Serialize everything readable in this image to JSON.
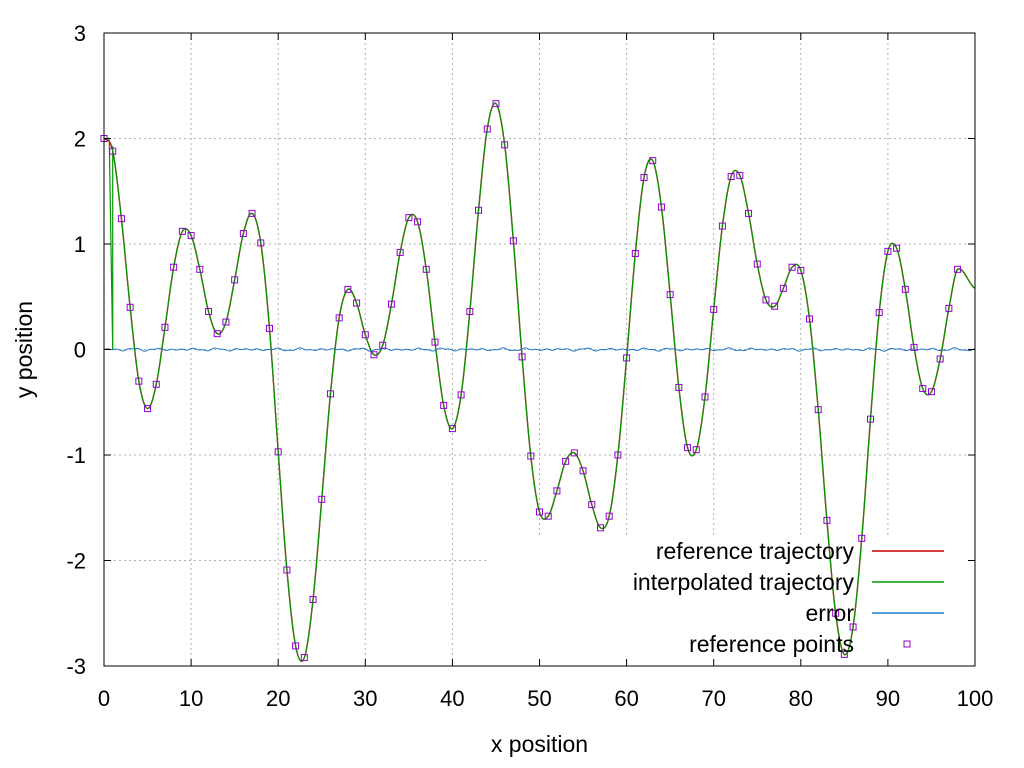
{
  "chart_data": {
    "type": "line",
    "title": "",
    "xlabel": "x position",
    "ylabel": "y position",
    "xlim": [
      0,
      100
    ],
    "ylim": [
      -3,
      3
    ],
    "xticks": [
      0,
      10,
      20,
      30,
      40,
      50,
      60,
      70,
      80,
      90,
      100
    ],
    "yticks": [
      -3,
      -2,
      -1,
      0,
      1,
      2,
      3
    ],
    "grid": true,
    "legend_position": "bottom-right",
    "series": [
      {
        "name": "reference trajectory",
        "style": "line",
        "color": "#cc0000"
      },
      {
        "name": "interpolated trajectory",
        "style": "line",
        "color": "#009900"
      },
      {
        "name": "error",
        "style": "line",
        "color": "#1f78c8"
      },
      {
        "name": "reference points",
        "style": "markers",
        "color": "#9400d3"
      }
    ],
    "reference_points": {
      "x": [
        0,
        1,
        2,
        3,
        4,
        5,
        6,
        7,
        8,
        9,
        10,
        11,
        12,
        13,
        14,
        15,
        16,
        17,
        18,
        19,
        20,
        21,
        22,
        23,
        24,
        25,
        26,
        27,
        28,
        29,
        30,
        31,
        32,
        33,
        34,
        35,
        36,
        37,
        38,
        39,
        40,
        41,
        42,
        43,
        44,
        45,
        46,
        47,
        48,
        49,
        50,
        51,
        52,
        53,
        54,
        55,
        56,
        57,
        58,
        59,
        60,
        61,
        62,
        63,
        64,
        65,
        66,
        67,
        68,
        69,
        70,
        71,
        72,
        73,
        74,
        75,
        76,
        77,
        78,
        79,
        80,
        81,
        82,
        83,
        84,
        85,
        86,
        87,
        88,
        89,
        90,
        91,
        92,
        93,
        94,
        95,
        96,
        97,
        98
      ],
      "y": [
        2.0,
        1.88,
        1.24,
        0.4,
        -0.3,
        -0.56,
        -0.33,
        0.21,
        0.78,
        1.12,
        1.08,
        0.76,
        0.36,
        0.15,
        0.26,
        0.66,
        1.1,
        1.29,
        1.01,
        0.2,
        -0.97,
        -2.09,
        -2.81,
        -2.92,
        -2.37,
        -1.42,
        -0.42,
        0.3,
        0.57,
        0.44,
        0.14,
        -0.05,
        0.04,
        0.43,
        0.92,
        1.25,
        1.21,
        0.76,
        0.07,
        -0.53,
        -0.75,
        -0.43,
        0.36,
        1.32,
        2.09,
        2.33,
        1.94,
        1.03,
        -0.07,
        -1.01,
        -1.54,
        -1.58,
        -1.34,
        -1.06,
        -0.98,
        -1.15,
        -1.47,
        -1.69,
        -1.58,
        -1.0,
        -0.08,
        0.91,
        1.63,
        1.79,
        1.35,
        0.52,
        -0.36,
        -0.93,
        -0.95,
        -0.45,
        0.38,
        1.17,
        1.64,
        1.65,
        1.29,
        0.81,
        0.47,
        0.41,
        0.58,
        0.78,
        0.75,
        0.29,
        -0.57,
        -1.62,
        -2.5,
        -2.89,
        -2.63,
        -1.79,
        -0.66,
        0.35,
        0.93,
        0.96,
        0.57,
        0.02,
        -0.37,
        -0.4,
        -0.09,
        0.39,
        0.76
      ]
    },
    "curve_end": {
      "x": 100,
      "y": 0.58
    }
  }
}
